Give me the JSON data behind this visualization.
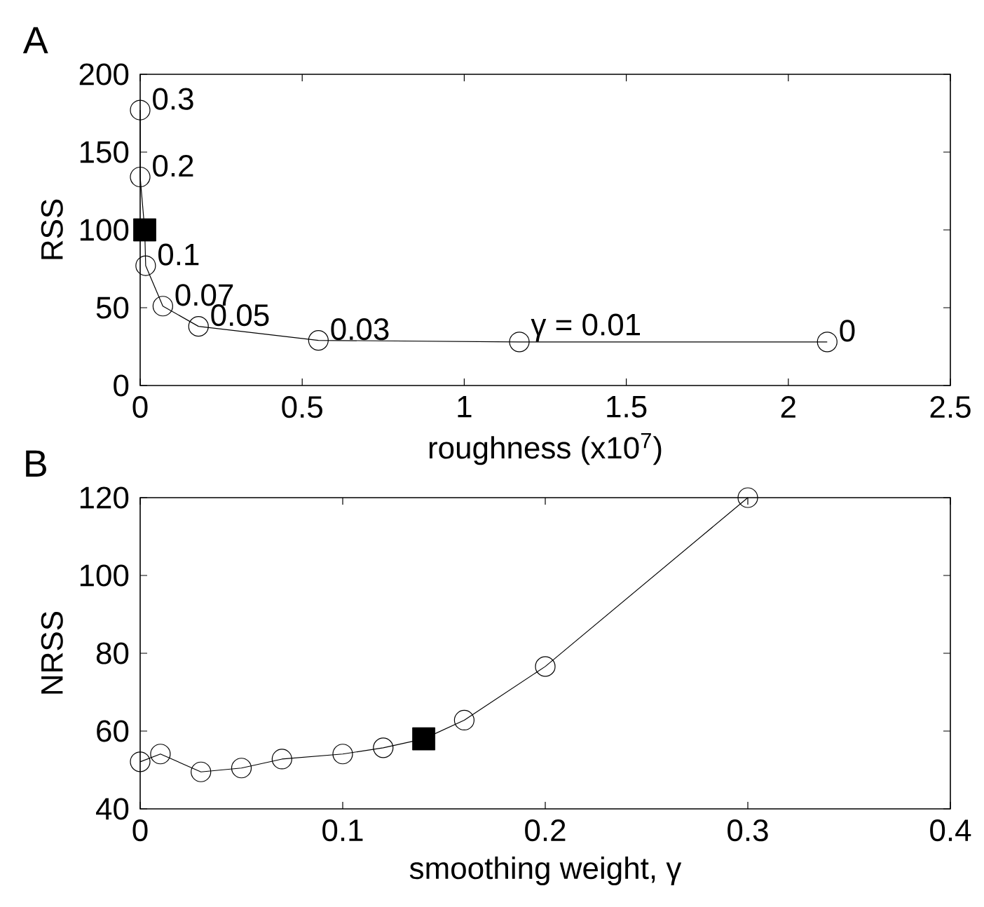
{
  "chart_data": [
    {
      "type": "line",
      "title": "A",
      "xlabel": "roughness (x10$^{7}$)",
      "ylabel": "RSS",
      "xlim": [
        0,
        2.5
      ],
      "ylim": [
        0,
        200
      ],
      "xticks": [
        0,
        0.5,
        1,
        1.5,
        2,
        2.5
      ],
      "yticks": [
        0,
        50,
        100,
        150,
        200
      ],
      "series": [
        {
          "color": "#000000",
          "marker": "none",
          "x": [
            0,
            0,
            0.014,
            0.017,
            0.07,
            0.18,
            0.55,
            1.17,
            2.12
          ],
          "values": [
            177,
            134,
            100,
            77,
            51,
            38,
            29,
            28,
            28
          ]
        },
        {
          "type": "scatter",
          "color": "#000000",
          "marker": "circle",
          "x": [
            0,
            0,
            0.017,
            0.07,
            0.18,
            0.55,
            1.17,
            2.12
          ],
          "values": [
            177,
            134,
            77,
            51,
            38,
            29,
            28,
            28
          ]
        },
        {
          "type": "scatter",
          "color": "#000000",
          "marker": "square",
          "x": [
            0.014
          ],
          "values": [
            100
          ]
        }
      ],
      "annotations": [
        {
          "text": "0.3",
          "x": 0,
          "y": 177
        },
        {
          "text": "0.2",
          "x": 0,
          "y": 134
        },
        {
          "text": "0.1",
          "x": 0.017,
          "y": 77
        },
        {
          "text": "0.07",
          "x": 0.07,
          "y": 51
        },
        {
          "text": "0.05",
          "x": 0.18,
          "y": 38
        },
        {
          "text": "0.03",
          "x": 0.55,
          "y": 29
        },
        {
          "text": "γ = 0.01",
          "x": 1.17,
          "y": 28
        },
        {
          "text": "0",
          "x": 2.12,
          "y": 28
        }
      ]
    },
    {
      "type": "line",
      "title": "B",
      "xlabel": "smoothing weight, γ",
      "ylabel": "NRSS",
      "xlim": [
        0,
        0.4
      ],
      "ylim": [
        40,
        120
      ],
      "xticks": [
        0,
        0.1,
        0.2,
        0.3,
        0.4
      ],
      "yticks": [
        40,
        60,
        80,
        100,
        120
      ],
      "series": [
        {
          "color": "#000000",
          "marker": "none",
          "x": [
            0,
            0.01,
            0.03,
            0.05,
            0.07,
            0.1,
            0.12,
            0.14,
            0.16,
            0.2,
            0.3
          ],
          "values": [
            52.1,
            54.1,
            49.5,
            50.5,
            52.8,
            54.1,
            55.7,
            58.0,
            62.8,
            76.6,
            120
          ]
        },
        {
          "type": "scatter",
          "color": "#000000",
          "marker": "circle",
          "x": [
            0,
            0.01,
            0.03,
            0.05,
            0.07,
            0.1,
            0.12,
            0.16,
            0.2,
            0.3
          ],
          "values": [
            52.1,
            54.1,
            49.5,
            50.5,
            52.8,
            54.1,
            55.7,
            62.8,
            76.6,
            120
          ]
        },
        {
          "type": "scatter",
          "color": "#000000",
          "marker": "square",
          "x": [
            0.14
          ],
          "values": [
            58.0
          ]
        }
      ]
    }
  ]
}
